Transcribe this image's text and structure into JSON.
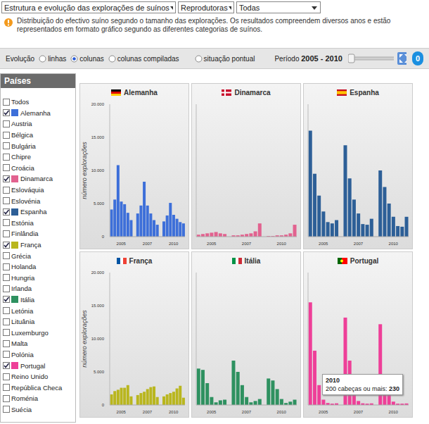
{
  "header": {
    "dropdowns": [
      "Estrutura e evolução das explorações de suínos",
      "Reprodutoras",
      "Todas"
    ],
    "info": "Distribuição do efectivo suíno segundo o tamanho das explorações. Os resultados compreendem diversos anos e estão representados em formato gráfico segundo as diferentes categorias de suínos."
  },
  "toolbar": {
    "label": "Evolução",
    "options": [
      {
        "label": "linhas",
        "selected": false
      },
      {
        "label": "colunas",
        "selected": true
      },
      {
        "label": "colunas compiladas",
        "selected": false
      },
      {
        "label": "situação pontual",
        "selected": false
      }
    ],
    "period_label": "Período",
    "period": "2005 - 2010",
    "badge": "0"
  },
  "sidebar": {
    "title": "Países",
    "items": [
      {
        "name": "Todos",
        "checked": false
      },
      {
        "name": "Alemanha",
        "checked": true,
        "color": "#3d6fd9"
      },
      {
        "name": "Austria",
        "checked": false
      },
      {
        "name": "Bélgica",
        "checked": false
      },
      {
        "name": "Bulgária",
        "checked": false
      },
      {
        "name": "Chipre",
        "checked": false
      },
      {
        "name": "Croácia",
        "checked": false
      },
      {
        "name": "Dinamarca",
        "checked": true,
        "color": "#e2628f"
      },
      {
        "name": "Eslováquia",
        "checked": false
      },
      {
        "name": "Eslovénia",
        "checked": false
      },
      {
        "name": "Espanha",
        "checked": true,
        "color": "#2d5f97"
      },
      {
        "name": "Estónia",
        "checked": false
      },
      {
        "name": "Finlândia",
        "checked": false
      },
      {
        "name": "França",
        "checked": true,
        "color": "#b9b61e"
      },
      {
        "name": "Grécia",
        "checked": false
      },
      {
        "name": "Holanda",
        "checked": false
      },
      {
        "name": "Hungria",
        "checked": false
      },
      {
        "name": "Irlanda",
        "checked": false
      },
      {
        "name": "Itália",
        "checked": true,
        "color": "#2e9160"
      },
      {
        "name": "Letónia",
        "checked": false
      },
      {
        "name": "Lituânia",
        "checked": false
      },
      {
        "name": "Luxemburgo",
        "checked": false
      },
      {
        "name": "Malta",
        "checked": false
      },
      {
        "name": "Polónia",
        "checked": false
      },
      {
        "name": "Portugal",
        "checked": true,
        "color": "#ee3f98"
      },
      {
        "name": "Reino Unido",
        "checked": false
      },
      {
        "name": "República Checa",
        "checked": false
      },
      {
        "name": "Roménia",
        "checked": false
      },
      {
        "name": "Suécia",
        "checked": false
      }
    ]
  },
  "chart_data": [
    {
      "type": "bar",
      "title": "Alemanha",
      "y_label": "número explorações",
      "color": "#3d6fd9",
      "categories": [
        null,
        null,
        null,
        "2005",
        null,
        null,
        null,
        null,
        null,
        null,
        null,
        "2007",
        null,
        null,
        null,
        null,
        null,
        null,
        null,
        "2010",
        null,
        null,
        null
      ],
      "values": [
        4100,
        5600,
        10800,
        5300,
        4900,
        3600,
        2500,
        null,
        3500,
        4700,
        8300,
        4700,
        3500,
        2500,
        1800,
        null,
        2300,
        3200,
        5100,
        3300,
        2700,
        2200,
        2000
      ],
      "ylim": [
        0,
        20000
      ],
      "yticks": [
        0,
        {
          "value": 5000,
          "label": "5.000"
        },
        {
          "value": 10000,
          "label": "10.000"
        },
        {
          "value": 15000,
          "label": "15.000"
        },
        {
          "value": 20000,
          "label": "20.000"
        }
      ]
    },
    {
      "type": "bar",
      "title": "Dinamarca",
      "color": "#e2628f",
      "tick_labels": "x",
      "categories": [
        null,
        null,
        null,
        "2005",
        null,
        null,
        null,
        null,
        null,
        null,
        null,
        "2007",
        null,
        null,
        null,
        null,
        null,
        null,
        null,
        "2010",
        null,
        null,
        null
      ],
      "values": [
        300,
        400,
        500,
        600,
        700,
        500,
        400,
        null,
        200,
        200,
        300,
        400,
        500,
        800,
        2000,
        null,
        100,
        100,
        200,
        200,
        300,
        500,
        1800
      ],
      "ylim": [
        0,
        20000
      ],
      "yticks": [
        0,
        {
          "value": 5000,
          "label": "5.000"
        },
        {
          "value": 10000,
          "label": "10.000"
        },
        {
          "value": 15000,
          "label": "15.000"
        },
        {
          "value": 20000,
          "label": "20.000"
        }
      ]
    },
    {
      "type": "bar",
      "title": "Espanha",
      "color": "#2d5f97",
      "tick_labels": "x",
      "categories": [
        null,
        null,
        null,
        "2005",
        null,
        null,
        null,
        null,
        null,
        null,
        null,
        "2007",
        null,
        null,
        null,
        null,
        null,
        null,
        null,
        "2010",
        null,
        null,
        null
      ],
      "values": [
        16000,
        9500,
        6200,
        3800,
        2200,
        2000,
        2500,
        null,
        13800,
        8800,
        5600,
        3500,
        1900,
        1800,
        2700,
        null,
        10000,
        7500,
        5000,
        3000,
        1600,
        1500,
        3000
      ],
      "ylim": [
        0,
        20000
      ],
      "yticks": [
        0,
        {
          "value": 5000,
          "label": "5.000"
        },
        {
          "value": 10000,
          "label": "10.000"
        },
        {
          "value": 15000,
          "label": "15.000"
        },
        {
          "value": 20000,
          "label": "20.000"
        }
      ]
    },
    {
      "type": "bar",
      "title": "França",
      "y_label": "número explorações",
      "color": "#b9b61e",
      "categories": [
        null,
        null,
        null,
        "2005",
        null,
        null,
        null,
        null,
        null,
        null,
        null,
        "2007",
        null,
        null,
        null,
        null,
        null,
        null,
        null,
        "2010",
        null,
        null,
        null
      ],
      "values": [
        1600,
        2100,
        2300,
        2600,
        2600,
        3000,
        1300,
        null,
        1500,
        1800,
        2000,
        2400,
        2700,
        2800,
        1200,
        null,
        1300,
        1600,
        1800,
        2000,
        2500,
        2900,
        1100
      ],
      "ylim": [
        0,
        20000
      ],
      "yticks": [
        0,
        {
          "value": 5000,
          "label": "5.000"
        },
        {
          "value": 10000,
          "label": "10.000"
        },
        {
          "value": 15000,
          "label": "15.000"
        },
        {
          "value": 20000,
          "label": "20.000"
        }
      ]
    },
    {
      "type": "bar",
      "title": "Itália",
      "color": "#2e9160",
      "tick_labels": "x",
      "categories": [
        null,
        null,
        null,
        "2005",
        null,
        null,
        null,
        null,
        null,
        null,
        null,
        "2007",
        null,
        null,
        null,
        null,
        null,
        null,
        null,
        "2010",
        null,
        null,
        null
      ],
      "values": [
        5500,
        5300,
        3300,
        1200,
        400,
        700,
        800,
        null,
        6700,
        5000,
        3000,
        1200,
        400,
        600,
        900,
        null,
        4000,
        3700,
        2400,
        900,
        300,
        500,
        800
      ],
      "ylim": [
        0,
        20000
      ],
      "yticks": [
        0,
        {
          "value": 5000,
          "label": "5.000"
        },
        {
          "value": 10000,
          "label": "10.000"
        },
        {
          "value": 15000,
          "label": "15.000"
        },
        {
          "value": 20000,
          "label": "20.000"
        }
      ]
    },
    {
      "type": "bar",
      "title": "Portugal",
      "color": "#ee3f98",
      "tick_labels": "x",
      "categories": [
        null,
        null,
        null,
        "2005",
        null,
        null,
        null,
        null,
        null,
        null,
        null,
        "2007",
        null,
        null,
        null,
        null,
        null,
        null,
        null,
        "2010",
        null,
        null,
        null
      ],
      "values": [
        15500,
        8200,
        3000,
        800,
        300,
        200,
        250,
        null,
        13200,
        6700,
        2500,
        600,
        250,
        200,
        240,
        null,
        12200,
        4500,
        1500,
        500,
        200,
        200,
        230
      ],
      "ylim": [
        0,
        20000
      ],
      "yticks": [
        0,
        {
          "value": 5000,
          "label": "5.000"
        },
        {
          "value": 10000,
          "label": "10.000"
        },
        {
          "value": 15000,
          "label": "15.000"
        },
        {
          "value": 20000,
          "label": "20.000"
        }
      ],
      "tooltip": {
        "title": "2010",
        "label": "200 cabeças ou mais:",
        "value": 230
      }
    }
  ]
}
